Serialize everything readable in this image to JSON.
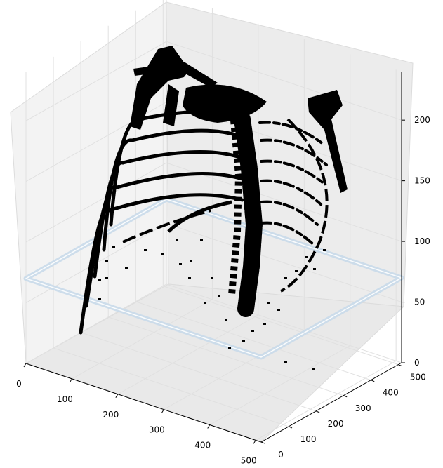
{
  "chart_data": {
    "type": "scatter",
    "projection": "3d",
    "title": "",
    "xlabel": "",
    "ylabel": "",
    "zlabel": "",
    "grid": true,
    "xlim": [
      0,
      512
    ],
    "ylim": [
      0,
      512
    ],
    "zlim": [
      0,
      240
    ],
    "x_ticks": [
      "0",
      "100",
      "200",
      "300",
      "400",
      "500"
    ],
    "y_ticks": [
      "0",
      "100",
      "200",
      "300",
      "400",
      "500"
    ],
    "z_ticks": [
      "0",
      "50",
      "100",
      "150",
      "200"
    ],
    "x_tick_values": [
      0,
      100,
      200,
      300,
      400,
      500
    ],
    "y_tick_values": [
      0,
      100,
      200,
      300,
      400,
      500
    ],
    "z_tick_values": [
      0,
      50,
      100,
      150,
      200
    ],
    "subject": "3D voxel scatter of thoracic skeleton (ribs, spine, shoulder blades)",
    "point_color": "#000000",
    "plane": {
      "z_value": 70,
      "x_range": [
        0,
        512
      ],
      "y_range": [
        0,
        512
      ],
      "color": "#c9daea"
    },
    "pane_color": "#f2f2f2",
    "grid_color": "#e0e0e0"
  }
}
